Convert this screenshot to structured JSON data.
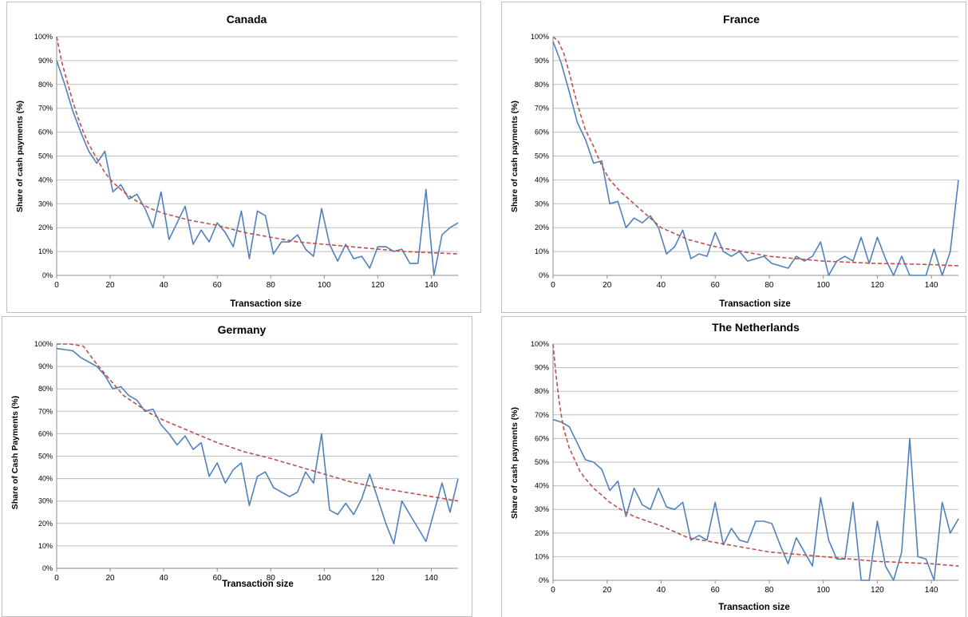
{
  "colors": {
    "observed": "#4f81bd",
    "fitted": "#c0504d",
    "grid": "#bdbdbd"
  },
  "chart_data": [
    {
      "type": "line",
      "title": "Canada",
      "xlabel": "Transaction size",
      "ylabel": "Share of cash payments (%)",
      "xlim": [
        0,
        150
      ],
      "ylim": [
        0,
        100
      ],
      "xticks": [
        0,
        20,
        40,
        60,
        80,
        100,
        120,
        140
      ],
      "yticks": [
        "0%",
        "10%",
        "20%",
        "30%",
        "40%",
        "50%",
        "60%",
        "70%",
        "80%",
        "90%",
        "100%"
      ],
      "grid": true,
      "series": [
        {
          "style": "solid",
          "color": "#4f81bd",
          "x": [
            0,
            3,
            6,
            9,
            12,
            15,
            18,
            21,
            24,
            27,
            30,
            33,
            36,
            39,
            42,
            45,
            48,
            51,
            54,
            57,
            60,
            63,
            66,
            69,
            72,
            75,
            78,
            81,
            84,
            87,
            90,
            93,
            96,
            99,
            102,
            105,
            108,
            111,
            114,
            117,
            120,
            123,
            126,
            129,
            132,
            135,
            138,
            141,
            144,
            147,
            150
          ],
          "y": [
            90,
            80,
            69,
            60,
            52,
            47,
            52,
            35,
            38,
            32,
            34,
            28,
            20,
            35,
            15,
            22,
            29,
            13,
            19,
            14,
            22,
            18,
            12,
            27,
            7,
            27,
            25,
            9,
            14,
            14,
            17,
            11,
            8,
            28,
            13,
            6,
            13,
            7,
            8,
            3,
            12,
            12,
            10,
            11,
            5,
            5,
            36,
            0,
            17,
            20,
            22
          ]
        },
        {
          "style": "dashed",
          "color": "#c0504d",
          "x": [
            0,
            2,
            4,
            6,
            8,
            10,
            12,
            15,
            18,
            21,
            25,
            30,
            35,
            40,
            50,
            60,
            70,
            80,
            90,
            100,
            110,
            120,
            130,
            140,
            150
          ],
          "y": [
            100,
            89,
            81,
            73,
            66,
            60,
            55,
            49,
            43,
            39,
            35,
            31,
            28,
            26,
            23,
            21,
            18,
            16,
            14,
            13,
            12,
            11,
            10,
            9.5,
            9
          ]
        }
      ]
    },
    {
      "type": "line",
      "title": "France",
      "xlabel": "Transaction size",
      "ylabel": "Share of cash payments (%)",
      "xlim": [
        0,
        150
      ],
      "ylim": [
        0,
        100
      ],
      "xticks": [
        0,
        20,
        40,
        60,
        80,
        100,
        120,
        140
      ],
      "yticks": [
        "0%",
        "10%",
        "20%",
        "30%",
        "40%",
        "50%",
        "60%",
        "70%",
        "80%",
        "90%",
        "100%"
      ],
      "grid": true,
      "series": [
        {
          "style": "solid",
          "color": "#4f81bd",
          "x": [
            0,
            3,
            6,
            9,
            12,
            15,
            18,
            21,
            24,
            27,
            30,
            33,
            36,
            39,
            42,
            45,
            48,
            51,
            54,
            57,
            60,
            63,
            66,
            69,
            72,
            75,
            78,
            81,
            84,
            87,
            90,
            93,
            96,
            99,
            102,
            105,
            108,
            111,
            114,
            117,
            120,
            123,
            126,
            129,
            132,
            135,
            138,
            141,
            144,
            147,
            150
          ],
          "y": [
            98,
            89,
            77,
            64,
            57,
            47,
            48,
            30,
            31,
            20,
            24,
            22,
            25,
            20,
            9,
            12,
            19,
            7,
            9,
            8,
            18,
            10,
            8,
            10,
            6,
            7,
            8,
            5,
            4,
            3,
            8,
            6,
            8,
            14,
            0,
            6,
            8,
            6,
            16,
            5,
            16,
            7,
            0,
            8,
            0,
            0,
            0,
            11,
            0,
            10,
            40
          ]
        },
        {
          "style": "dashed",
          "color": "#c0504d",
          "x": [
            0,
            2,
            4,
            6,
            8,
            10,
            12,
            15,
            18,
            21,
            25,
            30,
            35,
            40,
            50,
            60,
            70,
            80,
            90,
            100,
            110,
            120,
            130,
            140,
            150
          ],
          "y": [
            100,
            98,
            93,
            85,
            76,
            68,
            61,
            54,
            46,
            40,
            35,
            30,
            25,
            20,
            15,
            12,
            10,
            8,
            7,
            6,
            5.5,
            5,
            4.8,
            4.5,
            4
          ]
        }
      ]
    },
    {
      "type": "line",
      "title": "Germany",
      "xlabel": "Transaction size",
      "ylabel": "Share of Cash Payments (%)",
      "xlim": [
        0,
        150
      ],
      "ylim": [
        0,
        100
      ],
      "xticks": [
        0,
        20,
        40,
        60,
        80,
        100,
        120,
        140
      ],
      "yticks": [
        "0%",
        "10%",
        "20%",
        "30%",
        "40%",
        "50%",
        "60%",
        "70%",
        "80%",
        "90%",
        "100%"
      ],
      "grid": true,
      "series": [
        {
          "style": "solid",
          "color": "#4f81bd",
          "x": [
            0,
            3,
            6,
            9,
            12,
            15,
            18,
            21,
            24,
            27,
            30,
            33,
            36,
            39,
            42,
            45,
            48,
            51,
            54,
            57,
            60,
            63,
            66,
            69,
            72,
            75,
            78,
            81,
            84,
            87,
            90,
            93,
            96,
            99,
            102,
            105,
            108,
            111,
            114,
            117,
            120,
            123,
            126,
            129,
            132,
            135,
            138,
            141,
            144,
            147,
            150
          ],
          "y": [
            98,
            97.5,
            97,
            94,
            92,
            90,
            86,
            80,
            81,
            77,
            75,
            70,
            71,
            64,
            60,
            55,
            59,
            53,
            56,
            41,
            47,
            38,
            44,
            47,
            28,
            41,
            43,
            36,
            34,
            32,
            34,
            43,
            38,
            60,
            26,
            24,
            29,
            24,
            31,
            42,
            31,
            20,
            11,
            30,
            24,
            18,
            12,
            25,
            38,
            25,
            40
          ]
        },
        {
          "style": "dashed",
          "color": "#c0504d",
          "x": [
            0,
            5,
            10,
            15,
            20,
            25,
            30,
            35,
            40,
            50,
            60,
            70,
            80,
            90,
            100,
            110,
            120,
            130,
            140,
            150
          ],
          "y": [
            100,
            100,
            99,
            91,
            84,
            77,
            73,
            69,
            66,
            61,
            56,
            52,
            49,
            45.5,
            42,
            38.5,
            36,
            34,
            32,
            30
          ]
        }
      ]
    },
    {
      "type": "line",
      "title": "The Netherlands",
      "xlabel": "Transaction size",
      "ylabel": "Share of cash payments (%)",
      "xlim": [
        0,
        150
      ],
      "ylim": [
        0,
        100
      ],
      "xticks": [
        0,
        20,
        40,
        60,
        80,
        100,
        120,
        140
      ],
      "yticks": [
        "0%",
        "10%",
        "20%",
        "30%",
        "40%",
        "50%",
        "60%",
        "70%",
        "80%",
        "90%",
        "100%"
      ],
      "grid": true,
      "series": [
        {
          "style": "solid",
          "color": "#4f81bd",
          "x": [
            0,
            3,
            6,
            9,
            12,
            15,
            18,
            21,
            24,
            27,
            30,
            33,
            36,
            39,
            42,
            45,
            48,
            51,
            54,
            57,
            60,
            63,
            66,
            69,
            72,
            75,
            78,
            81,
            84,
            87,
            90,
            93,
            96,
            99,
            102,
            105,
            108,
            111,
            114,
            117,
            120,
            123,
            126,
            129,
            132,
            135,
            138,
            141,
            144,
            147,
            150
          ],
          "y": [
            68,
            67,
            65,
            58,
            51,
            50,
            47,
            38,
            42,
            27,
            39,
            32,
            30,
            39,
            31,
            30,
            33,
            17,
            19,
            17,
            33,
            15,
            22,
            17,
            16,
            25,
            25,
            24,
            15,
            7,
            18,
            12,
            6,
            35,
            17,
            9,
            9,
            33,
            0,
            0,
            25,
            6,
            0,
            12,
            60,
            10,
            9,
            0,
            33,
            20,
            26
          ]
        },
        {
          "style": "dashed",
          "color": "#c0504d",
          "x": [
            0,
            1,
            2,
            3,
            4,
            5,
            6,
            8,
            10,
            12,
            15,
            18,
            21,
            25,
            30,
            35,
            40,
            50,
            60,
            70,
            80,
            90,
            100,
            110,
            120,
            130,
            140,
            150
          ],
          "y": [
            100,
            88,
            78,
            70,
            64,
            60,
            56,
            51,
            46,
            43,
            39,
            36,
            33,
            30,
            27,
            25,
            23,
            18,
            16,
            14,
            12,
            11,
            10,
            9,
            8,
            7.5,
            7,
            6
          ]
        }
      ]
    }
  ]
}
